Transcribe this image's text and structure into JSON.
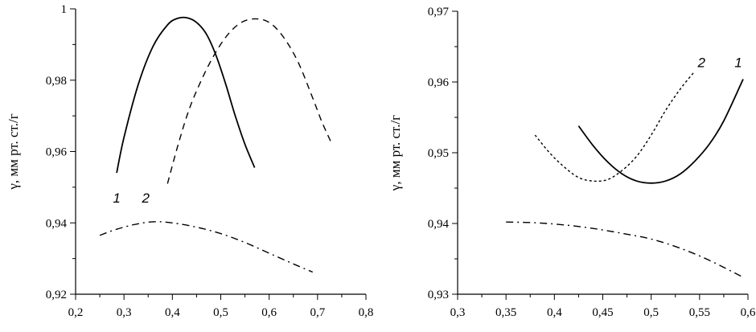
{
  "chart_data": [
    {
      "type": "line",
      "title": "",
      "xlabel": "",
      "ylabel": "γ, мм рт. ст./г",
      "xlim": [
        0.2,
        0.8
      ],
      "ylim": [
        0.92,
        1.0
      ],
      "xticks": [
        0.2,
        0.3,
        0.4,
        0.5,
        0.6,
        0.7,
        0.8
      ],
      "xtick_labels": [
        "0,2",
        "0,3",
        "0,4",
        "0,5",
        "0,6",
        "0,7",
        "0,8"
      ],
      "yticks": [
        0.92,
        0.94,
        0.96,
        0.98,
        1.0
      ],
      "ytick_labels": [
        "0,92",
        "0,94",
        "0,96",
        "0,98",
        "1"
      ],
      "grid": false,
      "series": [
        {
          "label": "1",
          "style": "solid",
          "label_at": [
            0.285,
            0.947
          ],
          "x": [
            0.285,
            0.3,
            0.33,
            0.36,
            0.39,
            0.41,
            0.43,
            0.45,
            0.47,
            0.49,
            0.51,
            0.53,
            0.55,
            0.57
          ],
          "y": [
            0.954,
            0.964,
            0.979,
            0.9895,
            0.9955,
            0.9973,
            0.9975,
            0.9962,
            0.993,
            0.987,
            0.979,
            0.97,
            0.962,
            0.9555
          ]
        },
        {
          "label": "2",
          "style": "dashed",
          "label_at": [
            0.345,
            0.947
          ],
          "x": [
            0.39,
            0.41,
            0.43,
            0.45,
            0.48,
            0.51,
            0.54,
            0.57,
            0.6,
            0.63,
            0.66,
            0.69,
            0.71,
            0.73
          ],
          "y": [
            0.951,
            0.961,
            0.97,
            0.977,
            0.9855,
            0.992,
            0.996,
            0.9972,
            0.9962,
            0.992,
            0.985,
            0.975,
            0.968,
            0.962
          ]
        },
        {
          "label": "",
          "style": "dashdot",
          "x": [
            0.25,
            0.28,
            0.32,
            0.36,
            0.4,
            0.45,
            0.5,
            0.55,
            0.6,
            0.65,
            0.69
          ],
          "y": [
            0.9365,
            0.938,
            0.9395,
            0.9403,
            0.94,
            0.9388,
            0.937,
            0.9345,
            0.9315,
            0.9285,
            0.9262
          ]
        }
      ]
    },
    {
      "type": "line",
      "title": "",
      "xlabel": "",
      "ylabel": "γ, мм рт. ст./г",
      "xlim": [
        0.3,
        0.6
      ],
      "ylim": [
        0.93,
        0.97
      ],
      "xticks": [
        0.3,
        0.35,
        0.4,
        0.45,
        0.5,
        0.55,
        0.6
      ],
      "xtick_labels": [
        "0,3",
        "0,35",
        "0,4",
        "0,45",
        "0,5",
        "0,55",
        "0,6"
      ],
      "yticks": [
        0.93,
        0.94,
        0.95,
        0.96,
        0.97
      ],
      "ytick_labels": [
        "0,93",
        "0,94",
        "0,95",
        "0,96",
        "0,97"
      ],
      "grid": false,
      "series": [
        {
          "label": "1",
          "style": "solid",
          "label_at": [
            0.59,
            0.9628
          ],
          "x": [
            0.425,
            0.44,
            0.455,
            0.47,
            0.485,
            0.5,
            0.515,
            0.53,
            0.545,
            0.56,
            0.575,
            0.595
          ],
          "y": [
            0.9538,
            0.951,
            0.9487,
            0.947,
            0.946,
            0.9457,
            0.946,
            0.947,
            0.9488,
            0.9512,
            0.9545,
            0.9604
          ]
        },
        {
          "label": "2",
          "style": "dotted",
          "label_at": [
            0.552,
            0.9628
          ],
          "x": [
            0.38,
            0.395,
            0.41,
            0.425,
            0.44,
            0.455,
            0.47,
            0.485,
            0.5,
            0.515,
            0.53,
            0.545
          ],
          "y": [
            0.9525,
            0.95,
            0.948,
            0.9465,
            0.946,
            0.9462,
            0.9475,
            0.9495,
            0.9525,
            0.956,
            0.959,
            0.9615
          ]
        },
        {
          "label": "",
          "style": "dashdot",
          "x": [
            0.35,
            0.38,
            0.41,
            0.44,
            0.47,
            0.5,
            0.53,
            0.56,
            0.595
          ],
          "y": [
            0.9402,
            0.9401,
            0.9398,
            0.9393,
            0.9386,
            0.9378,
            0.9365,
            0.9348,
            0.9324
          ]
        }
      ]
    }
  ]
}
